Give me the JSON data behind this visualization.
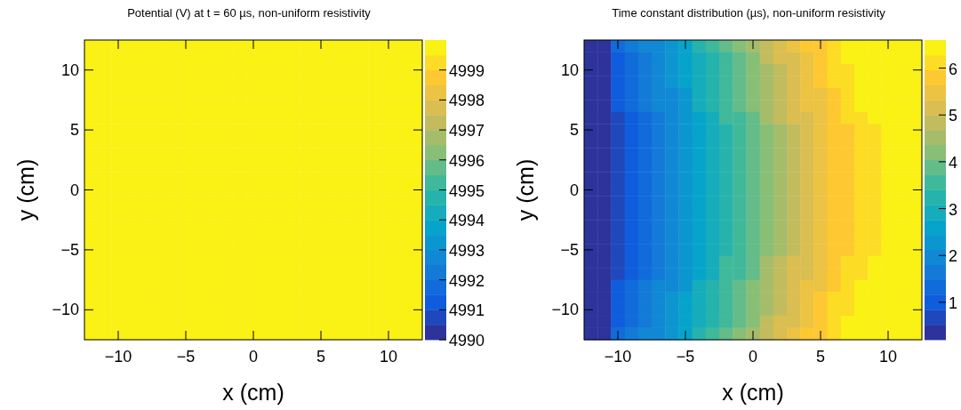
{
  "chart_data": [
    {
      "type": "heatmap",
      "title": "Potential (V) at t =  60 µs, non-uniform resistivity",
      "xlabel": "x (cm)",
      "ylabel": "y (cm)",
      "xlim": [
        -12.5,
        12.5
      ],
      "xticks": [
        -10,
        -5,
        0,
        5,
        10
      ],
      "ylim": [
        -12.5,
        12.5
      ],
      "yticks": [
        -10,
        -5,
        0,
        5,
        10
      ],
      "clim": [
        4990,
        5000
      ],
      "cticks": [
        4990,
        4991,
        4992,
        4993,
        4994,
        4995,
        4996,
        4997,
        4998,
        4999
      ],
      "cells": [
        [
          4999.8,
          4999.8,
          4999.8,
          4999.8,
          4999.8,
          4999.8,
          4999.8,
          4999.8,
          4999.8,
          4999.8,
          4999.8,
          4999.8,
          4999.8,
          4999.8,
          4999.8,
          4999.8,
          4999.8,
          4999.8,
          4999.8,
          4999.8,
          4999.8,
          4999.8,
          4999.8,
          4999.8,
          4999.8
        ],
        [
          4999.8,
          4999.8,
          4999.8,
          4999.8,
          4999.8,
          4999.8,
          4999.8,
          4999.8,
          4999.8,
          4999.8,
          4999.8,
          4999.8,
          4999.8,
          4999.8,
          4999.8,
          4999.8,
          4999.8,
          4999.8,
          4999.8,
          4999.8,
          4999.8,
          4999.8,
          4999.8,
          4999.8,
          4999.8
        ],
        [
          4999.8,
          4999.8,
          4999.8,
          4999.8,
          4999.8,
          4999.8,
          4999.8,
          4999.8,
          4999.8,
          4999.8,
          4999.8,
          4999.8,
          4999.8,
          4999.8,
          4999.8,
          4999.8,
          4999.8,
          4999.8,
          4999.8,
          4999.8,
          4999.8,
          4999.8,
          4999.8,
          4999.8,
          4999.8
        ],
        [
          4999.8,
          4999.8,
          4999.8,
          4999.8,
          4999.8,
          4999.8,
          4999.8,
          4999.8,
          4999.8,
          4999.8,
          4999.8,
          4999.8,
          4999.8,
          4999.8,
          4999.8,
          4999.8,
          4999.8,
          4999.8,
          4999.8,
          4999.8,
          4999.8,
          4999.8,
          4999.8,
          4999.8,
          4999.8
        ],
        [
          4999.8,
          4999.8,
          4999.8,
          4999.8,
          4999.8,
          4999.8,
          4999.8,
          4999.8,
          4999.8,
          4999.8,
          4999.8,
          4999.8,
          4999.8,
          4999.8,
          4999.8,
          4999.8,
          4999.8,
          4999.8,
          4999.8,
          4999.8,
          4999.8,
          4999.8,
          4999.8,
          4999.8,
          4999.8
        ],
        [
          4999.8,
          4999.8,
          4999.8,
          4999.8,
          4999.8,
          4999.8,
          4999.8,
          4999.8,
          4999.8,
          4999.8,
          4999.8,
          4999.8,
          4999.8,
          4999.8,
          4999.8,
          4999.8,
          4999.8,
          4999.8,
          4999.8,
          4999.8,
          4999.8,
          4999.8,
          4999.8,
          4999.8,
          4999.8
        ],
        [
          4999.8,
          4999.8,
          4999.8,
          4999.8,
          4999.8,
          4999.8,
          4999.8,
          4999.8,
          4999.8,
          4999.8,
          4999.8,
          4999.8,
          4999.8,
          4999.8,
          4999.8,
          4999.8,
          4999.8,
          4999.8,
          4999.8,
          4999.8,
          4999.8,
          4999.8,
          4999.8,
          4999.8,
          4999.8
        ],
        [
          4999.8,
          4999.8,
          4999.8,
          4999.8,
          4999.8,
          4999.8,
          4999.8,
          4999.8,
          4999.8,
          4999.8,
          4999.8,
          4999.8,
          4999.8,
          4999.8,
          4999.8,
          4999.8,
          4999.8,
          4999.8,
          4999.8,
          4999.8,
          4999.8,
          4999.8,
          4999.8,
          4999.8,
          4999.8
        ],
        [
          4999.8,
          4999.8,
          4999.8,
          4999.8,
          4999.8,
          4999.8,
          4999.8,
          4999.8,
          4999.8,
          4999.8,
          4999.8,
          4999.8,
          4999.8,
          4999.8,
          4999.8,
          4999.8,
          4999.8,
          4999.8,
          4999.8,
          4999.8,
          4999.8,
          4999.8,
          4999.8,
          4999.8,
          4999.8
        ],
        [
          4999.8,
          4999.8,
          4999.8,
          4999.8,
          4999.8,
          4999.8,
          4999.8,
          4999.8,
          4999.8,
          4999.8,
          4999.8,
          4999.8,
          4999.8,
          4999.8,
          4999.8,
          4999.8,
          4999.8,
          4999.8,
          4999.8,
          4999.8,
          4999.8,
          4999.8,
          4999.8,
          4999.8,
          4999.8
        ],
        [
          4999.8,
          4999.8,
          4999.8,
          4999.8,
          4999.8,
          4999.8,
          4999.8,
          4999.8,
          4999.8,
          4999.8,
          4999.8,
          4999.8,
          4999.8,
          4999.8,
          4999.8,
          4999.8,
          4999.8,
          4999.8,
          4999.8,
          4999.8,
          4999.8,
          4999.8,
          4999.8,
          4999.8,
          4999.8
        ],
        [
          4999.8,
          4999.8,
          4999.8,
          4999.8,
          4999.8,
          4999.8,
          4999.8,
          4999.8,
          4999.8,
          4999.8,
          4999.8,
          4999.8,
          4999.8,
          4999.8,
          4999.8,
          4999.8,
          4999.8,
          4999.8,
          4999.8,
          4999.8,
          4999.8,
          4999.8,
          4999.8,
          4999.8,
          4999.8
        ],
        [
          4999.8,
          4999.8,
          4999.8,
          4999.8,
          4999.8,
          4999.8,
          4999.8,
          4999.8,
          4999.8,
          4999.8,
          4999.8,
          4999.8,
          4999.8,
          4999.8,
          4999.8,
          4999.8,
          4999.8,
          4999.8,
          4999.8,
          4999.8,
          4999.8,
          4999.8,
          4999.8,
          4999.8,
          4999.8
        ],
        [
          4999.8,
          4999.8,
          4999.8,
          4999.8,
          4999.8,
          4999.8,
          4999.8,
          4999.8,
          4999.8,
          4999.8,
          4999.8,
          4999.8,
          4999.8,
          4999.8,
          4999.8,
          4999.8,
          4999.8,
          4999.8,
          4999.8,
          4999.8,
          4999.8,
          4999.8,
          4999.8,
          4999.8,
          4999.8
        ],
        [
          4999.8,
          4999.8,
          4999.8,
          4999.8,
          4999.8,
          4999.8,
          4999.8,
          4999.8,
          4999.8,
          4999.8,
          4999.8,
          4999.8,
          4999.8,
          4999.8,
          4999.8,
          4999.8,
          4999.8,
          4999.8,
          4999.8,
          4999.8,
          4999.8,
          4999.8,
          4999.8,
          4999.8,
          4999.8
        ],
        [
          4999.8,
          4999.8,
          4999.8,
          4999.8,
          4999.8,
          4999.8,
          4999.8,
          4999.8,
          4999.8,
          4999.8,
          4999.8,
          4999.8,
          4999.8,
          4999.8,
          4999.8,
          4999.8,
          4999.8,
          4999.8,
          4999.8,
          4999.8,
          4999.8,
          4999.8,
          4999.8,
          4999.8,
          4999.8
        ],
        [
          4999.8,
          4999.8,
          4999.8,
          4999.8,
          4999.8,
          4999.8,
          4999.8,
          4999.8,
          4999.8,
          4999.8,
          4999.8,
          4999.8,
          4999.8,
          4999.8,
          4999.8,
          4999.8,
          4999.8,
          4999.8,
          4999.8,
          4999.8,
          4999.8,
          4999.8,
          4999.8,
          4999.8,
          4999.8
        ],
        [
          4999.8,
          4999.8,
          4999.8,
          4999.8,
          4999.8,
          4999.8,
          4999.8,
          4999.8,
          4999.8,
          4999.8,
          4999.8,
          4999.8,
          4999.8,
          4999.8,
          4999.8,
          4999.8,
          4999.8,
          4999.8,
          4999.8,
          4999.8,
          4999.8,
          4999.8,
          4999.8,
          4999.8,
          4999.8
        ],
        [
          4999.8,
          4999.8,
          4999.8,
          4999.8,
          4999.8,
          4999.8,
          4999.8,
          4999.8,
          4999.8,
          4999.8,
          4999.8,
          4999.8,
          4999.8,
          4999.8,
          4999.8,
          4999.8,
          4999.8,
          4999.8,
          4999.8,
          4999.8,
          4999.8,
          4999.8,
          4999.8,
          4999.8,
          4999.8
        ],
        [
          4999.8,
          4999.8,
          4999.8,
          4999.8,
          4999.8,
          4999.8,
          4999.8,
          4999.8,
          4999.8,
          4999.8,
          4999.8,
          4999.8,
          4999.8,
          4999.8,
          4999.8,
          4999.8,
          4999.8,
          4999.8,
          4999.8,
          4999.8,
          4999.8,
          4999.8,
          4999.8,
          4999.8,
          4999.8
        ],
        [
          4999.8,
          4999.8,
          4999.8,
          4999.8,
          4999.8,
          4999.8,
          4999.8,
          4999.8,
          4999.8,
          4999.8,
          4999.8,
          4999.8,
          4999.8,
          4999.8,
          4999.8,
          4999.8,
          4999.8,
          4999.8,
          4999.8,
          4999.8,
          4999.8,
          4999.8,
          4999.8,
          4999.8,
          4999.8
        ],
        [
          4999.8,
          4999.8,
          4999.8,
          4999.8,
          4999.8,
          4999.8,
          4999.8,
          4999.8,
          4999.8,
          4999.8,
          4999.8,
          4999.8,
          4999.8,
          4999.8,
          4999.8,
          4999.8,
          4999.8,
          4999.8,
          4999.8,
          4999.8,
          4999.8,
          4999.8,
          4999.8,
          4999.8,
          4999.8
        ],
        [
          4999.8,
          4999.8,
          4999.8,
          4999.8,
          4999.8,
          4999.8,
          4999.8,
          4999.8,
          4999.8,
          4999.8,
          4999.8,
          4999.8,
          4999.8,
          4999.8,
          4999.8,
          4999.8,
          4999.8,
          4999.8,
          4999.8,
          4999.8,
          4999.8,
          4999.8,
          4999.8,
          4999.8,
          4999.8
        ],
        [
          4999.8,
          4999.8,
          4999.8,
          4999.8,
          4999.8,
          4999.8,
          4999.8,
          4999.8,
          4999.8,
          4999.8,
          4999.8,
          4999.8,
          4999.8,
          4999.8,
          4999.8,
          4999.8,
          4999.8,
          4999.8,
          4999.8,
          4999.8,
          4999.8,
          4999.8,
          4999.8,
          4999.8,
          4999.8
        ],
        [
          4999.8,
          4999.8,
          4999.8,
          4999.8,
          4999.8,
          4999.8,
          4999.8,
          4999.8,
          4999.8,
          4999.8,
          4999.8,
          4999.8,
          4999.8,
          4999.8,
          4999.8,
          4999.8,
          4999.8,
          4999.8,
          4999.8,
          4999.8,
          4999.8,
          4999.8,
          4999.8,
          4999.8,
          4999.8
        ]
      ]
    },
    {
      "type": "heatmap",
      "title": "Time constant distribution (µs), non-uniform resistivity",
      "xlabel": "x (cm)",
      "ylabel": "y (cm)",
      "xlim": [
        -12.5,
        12.5
      ],
      "xticks": [
        -10,
        -5,
        0,
        5,
        10
      ],
      "ylim": [
        -12.5,
        12.5
      ],
      "yticks": [
        -10,
        -5,
        0,
        5,
        10
      ],
      "clim": [
        0.2,
        6.6
      ],
      "cticks": [
        1,
        2,
        3,
        4,
        5,
        6
      ],
      "cells": [
        [
          0.3,
          0.4,
          1.2,
          1.5,
          1.8,
          2.1,
          2.4,
          2.7,
          3.1,
          3.4,
          3.8,
          4.1,
          4.4,
          4.8,
          5.1,
          5.4,
          5.7,
          5.9,
          6.2,
          6.4,
          6.5,
          6.5,
          6.5,
          6.5,
          6.5
        ],
        [
          0.3,
          0.4,
          1.1,
          1.4,
          1.7,
          2.0,
          2.3,
          2.6,
          3.0,
          3.3,
          3.7,
          4.0,
          4.3,
          4.7,
          5.0,
          5.3,
          5.6,
          5.8,
          6.1,
          6.3,
          6.5,
          6.5,
          6.5,
          6.5,
          6.5
        ],
        [
          0.3,
          0.4,
          1.0,
          1.3,
          1.6,
          1.9,
          2.2,
          2.5,
          2.9,
          3.2,
          3.6,
          3.9,
          4.2,
          4.6,
          4.9,
          5.2,
          5.5,
          5.7,
          6.0,
          6.2,
          6.4,
          6.5,
          6.5,
          6.5,
          6.5
        ],
        [
          0.3,
          0.4,
          1.0,
          1.3,
          1.6,
          1.9,
          2.2,
          2.5,
          2.9,
          3.2,
          3.6,
          3.9,
          4.2,
          4.6,
          4.9,
          5.2,
          5.5,
          5.7,
          6.0,
          6.2,
          6.4,
          6.5,
          6.5,
          6.5,
          6.5
        ],
        [
          0.3,
          0.4,
          0.9,
          1.2,
          1.5,
          1.8,
          2.1,
          2.4,
          2.8,
          3.1,
          3.5,
          3.8,
          4.1,
          4.5,
          4.8,
          5.1,
          5.4,
          5.6,
          5.9,
          6.1,
          6.3,
          6.4,
          6.5,
          6.5,
          6.5
        ],
        [
          0.3,
          0.4,
          0.9,
          1.2,
          1.5,
          1.8,
          2.1,
          2.4,
          2.8,
          3.1,
          3.5,
          3.8,
          4.1,
          4.5,
          4.8,
          5.1,
          5.4,
          5.6,
          5.9,
          6.1,
          6.3,
          6.4,
          6.5,
          6.5,
          6.5
        ],
        [
          0.3,
          0.4,
          0.8,
          1.1,
          1.4,
          1.7,
          2.0,
          2.3,
          2.7,
          3.0,
          3.4,
          3.7,
          4.0,
          4.4,
          4.7,
          5.0,
          5.3,
          5.5,
          5.8,
          6.0,
          6.2,
          6.3,
          6.5,
          6.5,
          6.5
        ],
        [
          0.3,
          0.4,
          0.7,
          1.0,
          1.3,
          1.6,
          1.9,
          2.2,
          2.6,
          2.9,
          3.3,
          3.6,
          3.9,
          4.3,
          4.6,
          4.9,
          5.2,
          5.4,
          5.7,
          5.9,
          6.1,
          6.2,
          6.4,
          6.5,
          6.5
        ],
        [
          0.3,
          0.4,
          0.7,
          1.0,
          1.3,
          1.6,
          1.9,
          2.2,
          2.6,
          2.9,
          3.3,
          3.6,
          3.9,
          4.3,
          4.6,
          4.9,
          5.2,
          5.4,
          5.7,
          5.9,
          6.1,
          6.2,
          6.4,
          6.5,
          6.5
        ],
        [
          0.3,
          0.4,
          0.7,
          1.0,
          1.3,
          1.6,
          1.9,
          2.2,
          2.6,
          2.9,
          3.3,
          3.6,
          3.9,
          4.3,
          4.6,
          4.9,
          5.2,
          5.4,
          5.7,
          5.9,
          6.1,
          6.2,
          6.4,
          6.5,
          6.5
        ],
        [
          0.3,
          0.4,
          0.7,
          1.0,
          1.3,
          1.6,
          1.9,
          2.2,
          2.6,
          2.9,
          3.3,
          3.6,
          3.9,
          4.3,
          4.6,
          4.9,
          5.2,
          5.4,
          5.7,
          5.9,
          6.1,
          6.2,
          6.4,
          6.5,
          6.5
        ],
        [
          0.3,
          0.4,
          0.7,
          1.0,
          1.3,
          1.6,
          1.9,
          2.2,
          2.6,
          2.9,
          3.3,
          3.6,
          3.9,
          4.3,
          4.6,
          4.9,
          5.2,
          5.4,
          5.7,
          5.9,
          6.1,
          6.2,
          6.4,
          6.5,
          6.5
        ],
        [
          0.3,
          0.4,
          0.7,
          1.0,
          1.3,
          1.6,
          1.9,
          2.2,
          2.6,
          2.9,
          3.3,
          3.6,
          3.9,
          4.3,
          4.6,
          4.9,
          5.2,
          5.4,
          5.7,
          5.9,
          6.1,
          6.2,
          6.4,
          6.5,
          6.5
        ],
        [
          0.3,
          0.4,
          0.7,
          1.0,
          1.3,
          1.6,
          1.9,
          2.2,
          2.6,
          2.9,
          3.3,
          3.6,
          3.9,
          4.3,
          4.6,
          4.9,
          5.2,
          5.4,
          5.7,
          5.9,
          6.1,
          6.2,
          6.4,
          6.5,
          6.5
        ],
        [
          0.3,
          0.4,
          0.7,
          1.0,
          1.3,
          1.6,
          1.9,
          2.2,
          2.6,
          2.9,
          3.3,
          3.6,
          3.9,
          4.3,
          4.6,
          4.9,
          5.2,
          5.4,
          5.7,
          5.9,
          6.1,
          6.2,
          6.4,
          6.5,
          6.5
        ],
        [
          0.3,
          0.4,
          0.7,
          1.0,
          1.3,
          1.6,
          1.9,
          2.2,
          2.6,
          2.9,
          3.3,
          3.6,
          3.9,
          4.3,
          4.6,
          4.9,
          5.2,
          5.4,
          5.7,
          5.9,
          6.1,
          6.2,
          6.4,
          6.5,
          6.5
        ],
        [
          0.3,
          0.4,
          0.7,
          1.0,
          1.3,
          1.6,
          1.9,
          2.2,
          2.6,
          2.9,
          3.3,
          3.6,
          3.9,
          4.3,
          4.6,
          4.9,
          5.2,
          5.4,
          5.7,
          5.9,
          6.1,
          6.2,
          6.4,
          6.5,
          6.5
        ],
        [
          0.3,
          0.4,
          0.7,
          1.0,
          1.3,
          1.6,
          1.9,
          2.2,
          2.6,
          2.9,
          3.3,
          3.6,
          3.9,
          4.3,
          4.6,
          4.9,
          5.2,
          5.4,
          5.7,
          5.9,
          6.1,
          6.2,
          6.4,
          6.5,
          6.5
        ],
        [
          0.3,
          0.4,
          0.8,
          1.1,
          1.4,
          1.7,
          2.0,
          2.3,
          2.7,
          3.0,
          3.4,
          3.7,
          4.0,
          4.4,
          4.7,
          5.0,
          5.3,
          5.5,
          5.8,
          6.0,
          6.2,
          6.3,
          6.5,
          6.5,
          6.5
        ],
        [
          0.3,
          0.4,
          0.8,
          1.1,
          1.4,
          1.7,
          2.0,
          2.3,
          2.7,
          3.0,
          3.4,
          3.7,
          4.0,
          4.4,
          4.7,
          5.0,
          5.3,
          5.5,
          5.8,
          6.0,
          6.2,
          6.3,
          6.5,
          6.5,
          6.5
        ],
        [
          0.3,
          0.4,
          0.9,
          1.2,
          1.5,
          1.8,
          2.1,
          2.4,
          2.8,
          3.1,
          3.5,
          3.8,
          4.1,
          4.5,
          4.8,
          5.1,
          5.4,
          5.6,
          5.9,
          6.1,
          6.3,
          6.4,
          6.5,
          6.5,
          6.5
        ],
        [
          0.3,
          0.4,
          1.0,
          1.3,
          1.6,
          1.9,
          2.2,
          2.5,
          2.9,
          3.2,
          3.6,
          3.9,
          4.2,
          4.6,
          4.9,
          5.2,
          5.5,
          5.7,
          6.0,
          6.2,
          6.4,
          6.5,
          6.5,
          6.5,
          6.5
        ],
        [
          0.3,
          0.4,
          1.0,
          1.3,
          1.6,
          1.9,
          2.2,
          2.5,
          2.9,
          3.2,
          3.6,
          3.9,
          4.2,
          4.6,
          4.9,
          5.2,
          5.5,
          5.7,
          6.0,
          6.2,
          6.4,
          6.5,
          6.5,
          6.5,
          6.5
        ],
        [
          0.3,
          0.4,
          1.1,
          1.4,
          1.7,
          2.0,
          2.3,
          2.6,
          3.0,
          3.3,
          3.7,
          4.0,
          4.3,
          4.7,
          5.0,
          5.3,
          5.6,
          5.8,
          6.1,
          6.3,
          6.5,
          6.5,
          6.5,
          6.5,
          6.5
        ],
        [
          0.3,
          0.4,
          1.2,
          1.5,
          1.8,
          2.1,
          2.4,
          2.7,
          3.1,
          3.4,
          3.8,
          4.1,
          4.4,
          4.8,
          5.1,
          5.4,
          5.7,
          5.9,
          6.2,
          6.4,
          6.5,
          6.5,
          6.5,
          6.5,
          6.5
        ]
      ]
    }
  ]
}
